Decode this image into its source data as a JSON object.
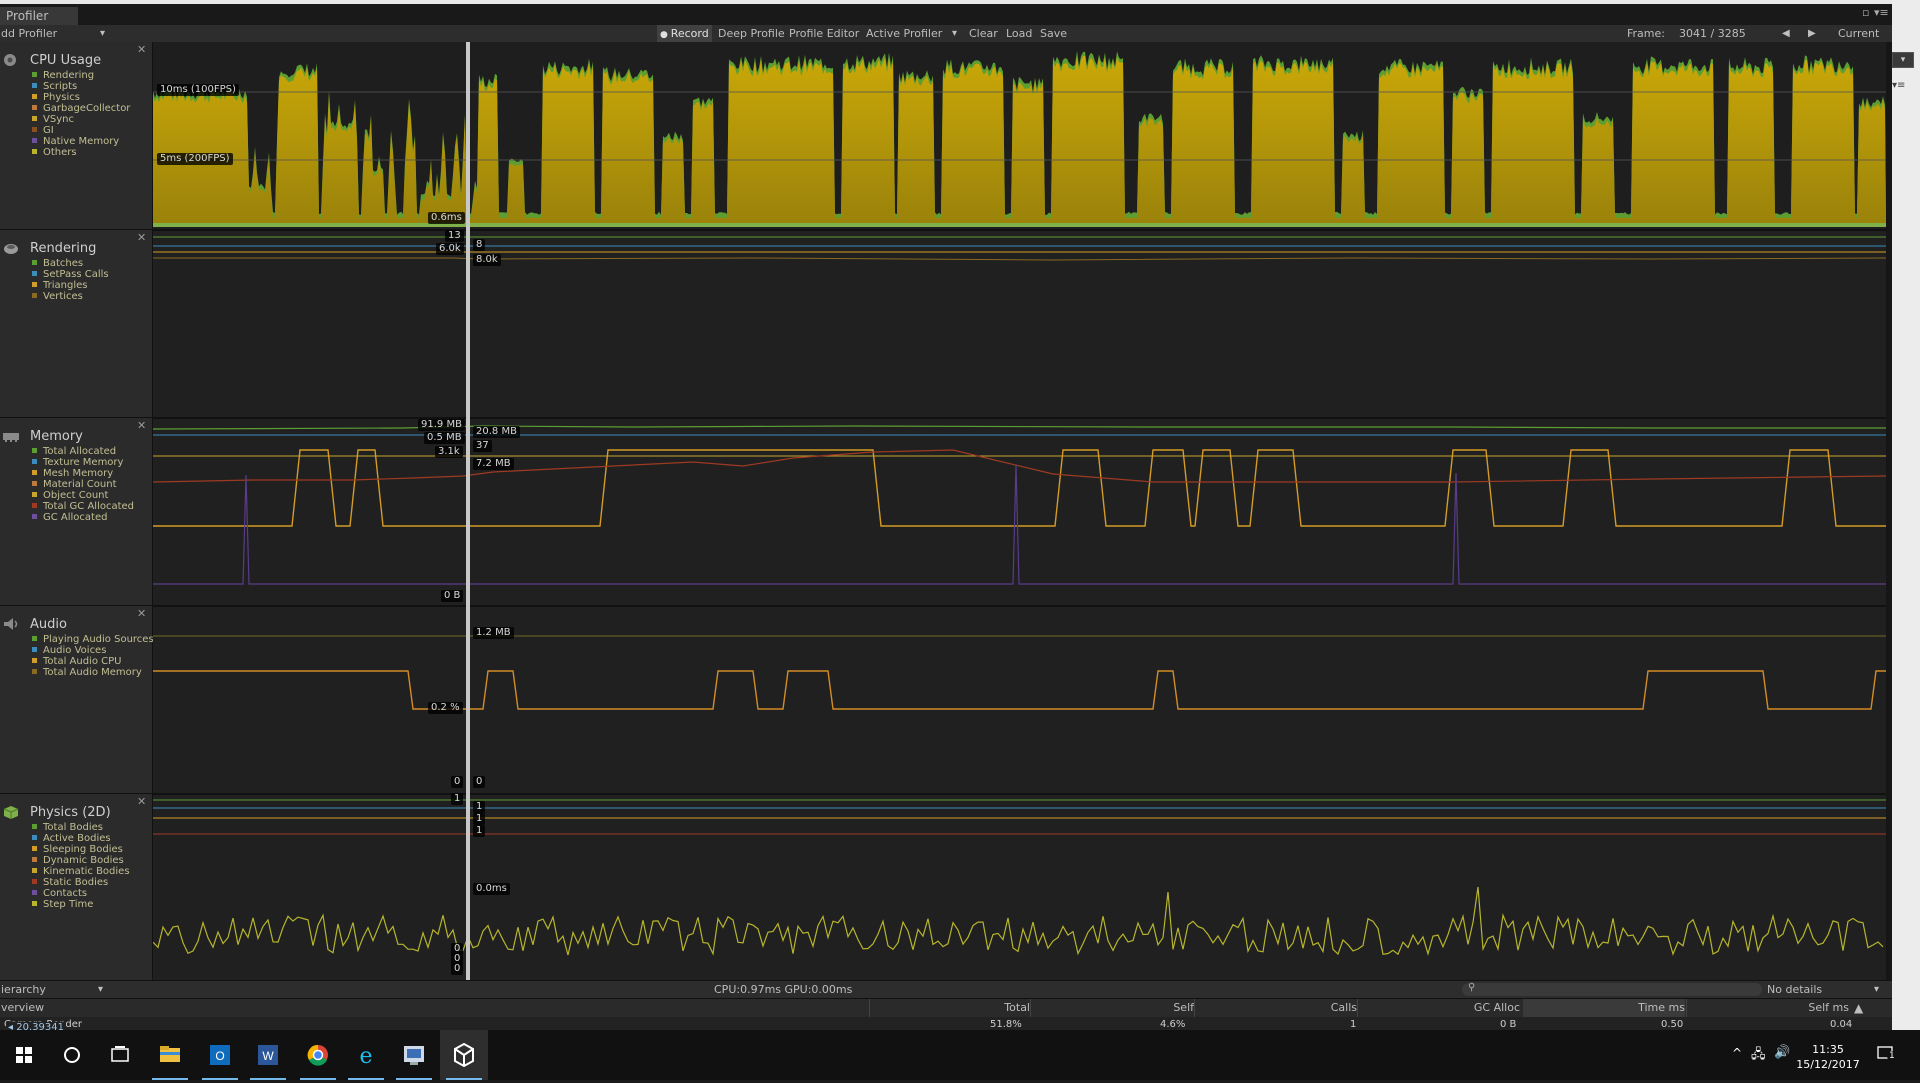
{
  "window": {
    "tab_title": "Profiler",
    "add_profiler_label": "dd Profiler"
  },
  "toolbar": {
    "record_label": "Record",
    "deep_profile_label": "Deep Profile",
    "profile_editor_label": "Profile Editor",
    "active_profiler_label": "Active Profiler",
    "clear_label": "Clear",
    "load_label": "Load",
    "save_label": "Save",
    "frame_label": "Frame:",
    "frame_value": "3041 / 3285",
    "current_label": "Current"
  },
  "sections": [
    {
      "title": "CPU Usage",
      "legend": [
        {
          "label": "Rendering",
          "color": "#5c9e32"
        },
        {
          "label": "Scripts",
          "color": "#3c8dbc"
        },
        {
          "label": "Physics",
          "color": "#d39b27"
        },
        {
          "label": "GarbageCollector",
          "color": "#bd7a3c"
        },
        {
          "label": "VSync",
          "color": "#c8a62b"
        },
        {
          "label": "GI",
          "color": "#8a4f22"
        },
        {
          "label": "Native Memory",
          "color": "#6c4f9e"
        },
        {
          "label": "Others",
          "color": "#b7b52c"
        }
      ]
    },
    {
      "title": "Rendering",
      "legend": [
        {
          "label": "Batches",
          "color": "#5c9e32"
        },
        {
          "label": "SetPass Calls",
          "color": "#3c8dbc"
        },
        {
          "label": "Triangles",
          "color": "#d39b27"
        },
        {
          "label": "Vertices",
          "color": "#8a6a22"
        }
      ]
    },
    {
      "title": "Memory",
      "legend": [
        {
          "label": "Total Allocated",
          "color": "#5c9e32"
        },
        {
          "label": "Texture Memory",
          "color": "#3c8dbc"
        },
        {
          "label": "Mesh Memory",
          "color": "#d39b27"
        },
        {
          "label": "Material Count",
          "color": "#bd7a3c"
        },
        {
          "label": "Object Count",
          "color": "#c8a62b"
        },
        {
          "label": "Total GC Allocated",
          "color": "#9e3a22"
        },
        {
          "label": "GC Allocated",
          "color": "#6c4f9e"
        }
      ]
    },
    {
      "title": "Audio",
      "legend": [
        {
          "label": "Playing Audio Sources",
          "color": "#5c9e32"
        },
        {
          "label": "Audio Voices",
          "color": "#3c8dbc"
        },
        {
          "label": "Total Audio CPU",
          "color": "#d39b27"
        },
        {
          "label": "Total Audio Memory",
          "color": "#8a6a22"
        }
      ]
    },
    {
      "title": "Physics (2D)",
      "legend": [
        {
          "label": "Total Bodies",
          "color": "#5c9e32"
        },
        {
          "label": "Active Bodies",
          "color": "#3c8dbc"
        },
        {
          "label": "Sleeping Bodies",
          "color": "#d39b27"
        },
        {
          "label": "Dynamic Bodies",
          "color": "#bd7a3c"
        },
        {
          "label": "Kinematic Bodies",
          "color": "#c8a62b"
        },
        {
          "label": "Static Bodies",
          "color": "#9e3a22"
        },
        {
          "label": "Contacts",
          "color": "#6c4f9e"
        },
        {
          "label": "Step Time",
          "color": "#b7b52c"
        }
      ]
    }
  ],
  "labels": {
    "cpu": {
      "l10": "10ms (100FPS)",
      "l5": "5ms (200FPS)",
      "sel": "0.6ms"
    },
    "rendering": {
      "a": "13",
      "b": "6.0k",
      "c": "8",
      "d": "8.0k"
    },
    "memory": {
      "a": "91.9 MB",
      "b": "0.5 MB",
      "c": "3.1k",
      "d": "20.8 MB",
      "e": "37",
      "f": "7.2 MB",
      "g": "0 B"
    },
    "audio": {
      "a": "1.2 MB",
      "b": "0.2 %",
      "c": "0",
      "d": "0"
    },
    "physics": {
      "a": "1",
      "b": "1",
      "c": "1",
      "d": "1",
      "e": "0.0ms",
      "z1": "0",
      "z2": "0",
      "z3": "0"
    }
  },
  "status": {
    "hierarchy_label": "ierarchy",
    "cpu_gpu": "CPU:0.97ms   GPU:0.00ms",
    "no_details": "No details"
  },
  "columns": {
    "overview": "verview",
    "total": "Total",
    "self": "Self",
    "calls": "Calls",
    "gc_alloc": "GC Alloc",
    "time_ms": "Time ms",
    "self_ms": "Self ms"
  },
  "row": {
    "name": "Camera.Render",
    "total": "51.8%",
    "self": "4.6%",
    "calls": "1",
    "gc": "0 B",
    "time": "0.50",
    "selfms": "0.04"
  },
  "overlay_text": "20.39341",
  "taskbar": {
    "apps": [
      "start-icon",
      "search-circle-icon",
      "task-view-icon",
      "file-explorer-icon",
      "outlook-icon",
      "word-icon",
      "chrome-icon",
      "ie-icon",
      "remote-app-icon",
      "unity-icon"
    ],
    "time": "11:35",
    "date": "15/12/2017",
    "notification_count": "1"
  },
  "chart_data": [
    {
      "type": "area",
      "title": "CPU Usage",
      "ylabel": "ms",
      "gridlines": [
        "10ms (100FPS)",
        "5ms (200FPS)"
      ],
      "series": [
        {
          "name": "Rendering"
        },
        {
          "name": "Scripts"
        },
        {
          "name": "VSync"
        }
      ],
      "selected_frame_value": "0.6ms"
    },
    {
      "type": "line",
      "title": "Rendering",
      "series": [
        {
          "name": "Batches",
          "value": "13"
        },
        {
          "name": "SetPass Calls",
          "value": "8"
        },
        {
          "name": "Triangles",
          "value": "6.0k"
        },
        {
          "name": "Vertices",
          "value": "8.0k"
        }
      ]
    },
    {
      "type": "line",
      "title": "Memory",
      "series": [
        {
          "name": "Total Allocated",
          "value": "91.9 MB"
        },
        {
          "name": "Texture Memory",
          "value": "20.8 MB"
        },
        {
          "name": "Mesh Memory",
          "value": "0.5 MB"
        },
        {
          "name": "Material Count",
          "value": "37"
        },
        {
          "name": "Object Count",
          "value": "3.1k"
        },
        {
          "name": "Total GC Allocated",
          "value": "7.2 MB"
        },
        {
          "name": "GC Allocated",
          "value": "0 B"
        }
      ]
    },
    {
      "type": "line",
      "title": "Audio",
      "series": [
        {
          "name": "Total Audio Memory",
          "value": "1.2 MB"
        },
        {
          "name": "Total Audio CPU",
          "value": "0.2 %"
        }
      ]
    },
    {
      "type": "line",
      "title": "Physics (2D)",
      "series": [
        {
          "name": "Total Bodies",
          "value": "1"
        },
        {
          "name": "Step Time",
          "value": "0.0ms"
        }
      ]
    }
  ]
}
